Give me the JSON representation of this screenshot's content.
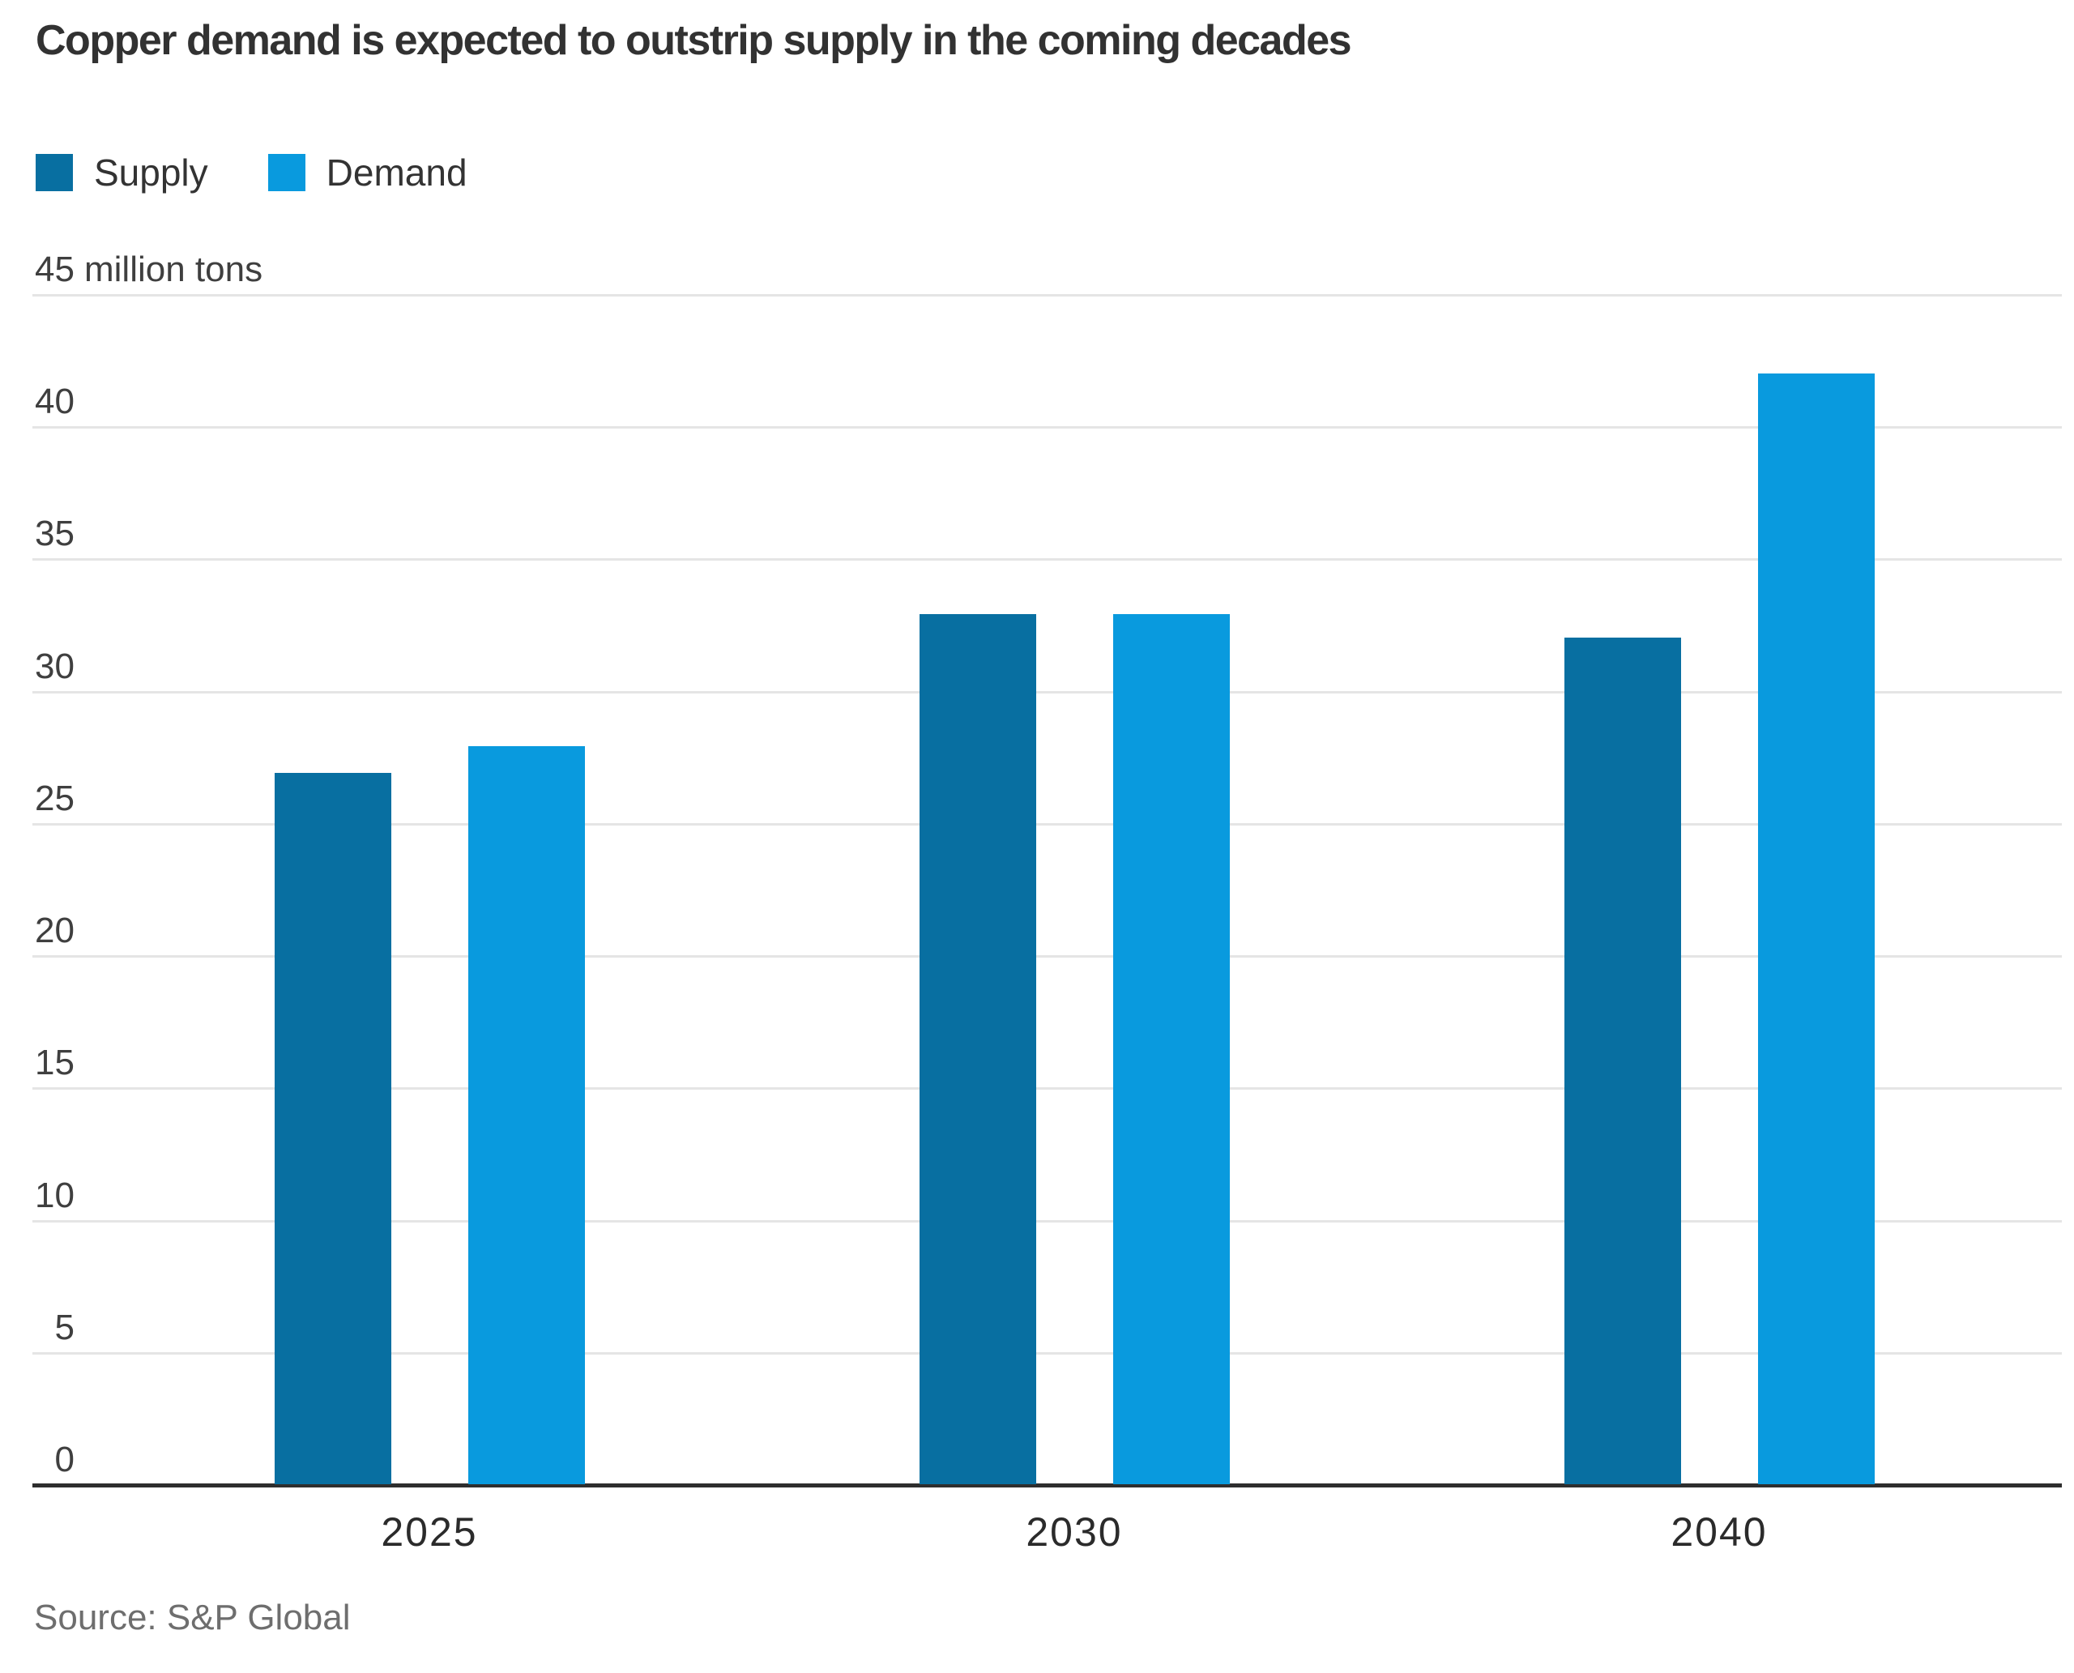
{
  "chart_data": {
    "type": "bar",
    "title": "Copper demand is expected to outstrip supply in the coming decades",
    "unit_label": "million tons",
    "categories": [
      "2025",
      "2030",
      "2040"
    ],
    "series": [
      {
        "name": "Supply",
        "color": "#086fa1",
        "values": [
          26.9,
          32.9,
          32.0
        ]
      },
      {
        "name": "Demand",
        "color": "#099ade",
        "values": [
          27.9,
          32.9,
          42.0
        ]
      }
    ],
    "ylim": [
      0,
      45
    ],
    "ytick_step": 5,
    "grid": "horizontal",
    "legend_position": "top-left",
    "source": "Source: S&P Global",
    "colors": {
      "gridline": "#e5e5e5",
      "axis_line": "#2e2e2e",
      "title_text": "#323232",
      "tick_text": "#3f3f3f",
      "source_text": "#6e6e6e"
    }
  }
}
